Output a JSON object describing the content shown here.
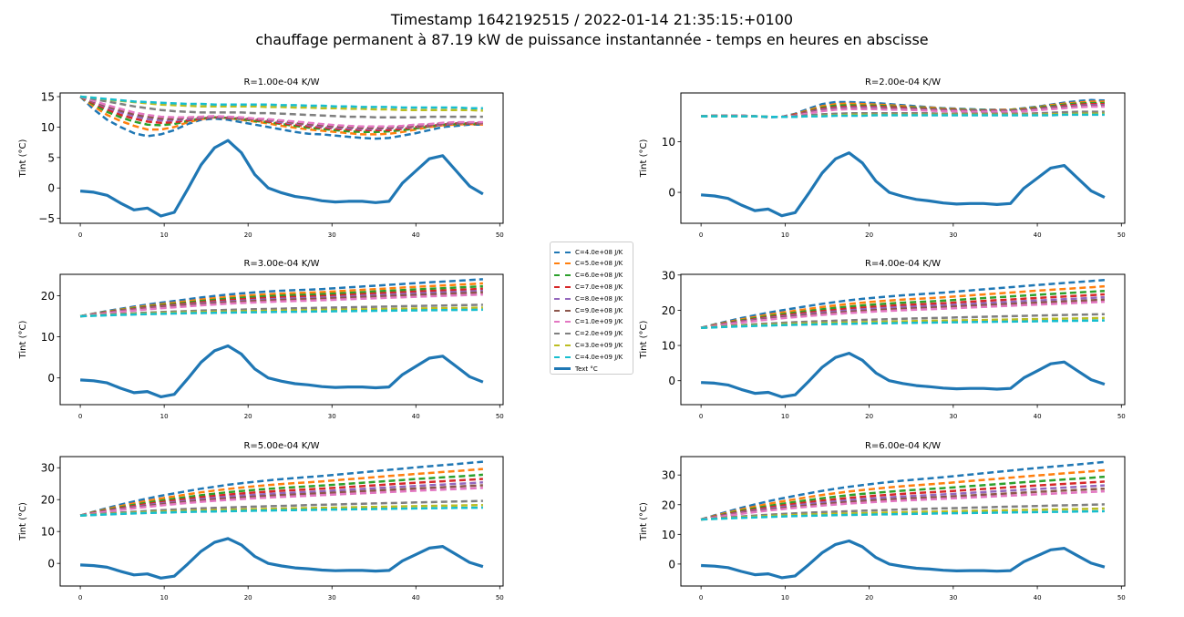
{
  "title": "Timestamp 1642192515 / 2022-01-14 21:35:15:+0100",
  "subtitle": "chauffage permanent à 87.19 kW de puissance instantannée - temps en heures en abscisse",
  "chart_data": [
    {
      "type": "line",
      "title": "R=1.00e-04 K/W",
      "ylabel": "Tint (°C)",
      "xlim": [
        -2.4,
        50.4
      ],
      "ylim": [
        -5.8,
        15.6
      ],
      "xticks": [
        0,
        10,
        20,
        30,
        40,
        50
      ],
      "yticks": [
        -5,
        0,
        5,
        10,
        15
      ],
      "cs": [
        [
          15,
          12.9,
          11.2,
          10,
          9,
          8.5,
          8.8,
          9.5,
          10.5,
          11.2,
          11.4,
          11.2,
          10.8,
          10.4,
          10,
          9.6,
          9.2,
          8.9,
          8.8,
          8.6,
          8.4,
          8.2,
          8.1,
          8.2,
          8.6,
          9,
          9.5,
          10,
          10.2,
          10.4,
          10.4
        ],
        [
          15,
          13.4,
          12,
          11,
          10.2,
          9.6,
          9.6,
          10,
          10.8,
          11.3,
          11.6,
          11.5,
          11.2,
          10.9,
          10.6,
          10.2,
          9.9,
          9.6,
          9.4,
          9.2,
          9,
          8.8,
          8.8,
          8.9,
          9.2,
          9.6,
          10,
          10.3,
          10.4,
          10.5,
          10.4
        ],
        [
          15,
          13.7,
          12.5,
          11.6,
          10.9,
          10.4,
          10.3,
          10.5,
          11,
          11.4,
          11.6,
          11.5,
          11.3,
          11,
          10.8,
          10.5,
          10.2,
          9.9,
          9.7,
          9.5,
          9.3,
          9.2,
          9.2,
          9.3,
          9.5,
          9.8,
          10.1,
          10.4,
          10.5,
          10.6,
          10.5
        ],
        [
          15,
          13.9,
          12.9,
          12,
          11.4,
          10.9,
          10.7,
          10.8,
          11.1,
          11.4,
          11.6,
          11.5,
          11.4,
          11.2,
          10.9,
          10.6,
          10.4,
          10.1,
          9.9,
          9.7,
          9.6,
          9.5,
          9.5,
          9.5,
          9.7,
          10,
          10.2,
          10.4,
          10.6,
          10.6,
          10.6
        ],
        [
          15,
          14.1,
          13.2,
          12.4,
          11.8,
          11.3,
          11.1,
          11.1,
          11.3,
          11.5,
          11.6,
          11.6,
          11.4,
          11.3,
          11.1,
          10.8,
          10.6,
          10.3,
          10.1,
          9.9,
          9.8,
          9.7,
          9.7,
          9.8,
          9.9,
          10.1,
          10.3,
          10.5,
          10.6,
          10.7,
          10.6
        ],
        [
          15,
          14.2,
          13.4,
          12.7,
          12.1,
          11.7,
          11.4,
          11.3,
          11.5,
          11.6,
          11.7,
          11.6,
          11.5,
          11.3,
          11.2,
          11,
          10.7,
          10.5,
          10.3,
          10.1,
          10,
          9.9,
          9.9,
          9.9,
          10.1,
          10.2,
          10.4,
          10.6,
          10.7,
          10.7,
          10.7
        ],
        [
          15,
          14.3,
          13.6,
          13,
          12.4,
          12,
          11.7,
          11.6,
          11.6,
          11.7,
          11.8,
          11.7,
          11.6,
          11.4,
          11.3,
          11.1,
          10.9,
          10.7,
          10.5,
          10.3,
          10.2,
          10.1,
          10.1,
          10.1,
          10.2,
          10.4,
          10.5,
          10.7,
          10.8,
          10.8,
          10.8
        ],
        [
          15,
          14.6,
          14.2,
          13.8,
          13.4,
          13.1,
          12.8,
          12.6,
          12.5,
          12.4,
          12.4,
          12.4,
          12.4,
          12.3,
          12.3,
          12.2,
          12.1,
          12,
          11.9,
          11.8,
          11.7,
          11.7,
          11.6,
          11.6,
          11.6,
          11.6,
          11.7,
          11.7,
          11.7,
          11.7,
          11.7
        ],
        [
          15,
          14.8,
          14.5,
          14.3,
          14.1,
          13.9,
          13.7,
          13.6,
          13.5,
          13.4,
          13.4,
          13.4,
          13.4,
          13.4,
          13.3,
          13.3,
          13.2,
          13.2,
          13.1,
          13.1,
          13,
          13,
          12.9,
          12.9,
          12.8,
          12.8,
          12.8,
          12.8,
          12.8,
          12.8,
          12.7
        ],
        [
          15,
          14.8,
          14.6,
          14.4,
          14.2,
          14.1,
          14,
          13.9,
          13.8,
          13.8,
          13.7,
          13.7,
          13.7,
          13.7,
          13.7,
          13.6,
          13.6,
          13.5,
          13.5,
          13.4,
          13.4,
          13.3,
          13.3,
          13.3,
          13.2,
          13.2,
          13.2,
          13.2,
          13.2,
          13.1,
          13.1
        ]
      ]
    },
    {
      "type": "line",
      "title": "R=2.00e-04 K/W",
      "ylabel": "Tint (°C)",
      "xlim": [
        -2.4,
        50.4
      ],
      "ylim": [
        -6.1,
        19.6
      ],
      "xticks": [
        0,
        10,
        20,
        30,
        40,
        50
      ],
      "yticks": [
        0,
        10
      ],
      "cs": [
        [
          15,
          15.1,
          15.1,
          15.1,
          15,
          14.8,
          14.9,
          15.5,
          16.5,
          17.4,
          17.8,
          17.8,
          17.7,
          17.6,
          17.4,
          17.2,
          17,
          16.8,
          16.6,
          16.5,
          16.4,
          16.3,
          16.3,
          16.3,
          16.6,
          16.9,
          17.3,
          17.7,
          18,
          18.2,
          18.1
        ],
        [
          15,
          15.1,
          15.1,
          15.1,
          15,
          14.9,
          14.9,
          15.4,
          16.2,
          17,
          17.4,
          17.5,
          17.4,
          17.3,
          17.2,
          17,
          16.8,
          16.7,
          16.5,
          16.4,
          16.3,
          16.2,
          16.2,
          16.3,
          16.5,
          16.8,
          17.2,
          17.5,
          17.7,
          17.9,
          17.9
        ],
        [
          15,
          15.1,
          15.1,
          15.1,
          15,
          14.9,
          14.9,
          15.3,
          16,
          16.7,
          17.1,
          17.2,
          17.1,
          17.1,
          17,
          16.8,
          16.7,
          16.5,
          16.4,
          16.3,
          16.2,
          16.2,
          16.1,
          16.2,
          16.4,
          16.7,
          17,
          17.3,
          17.5,
          17.6,
          17.6
        ],
        [
          15,
          15.1,
          15.1,
          15.1,
          15,
          14.9,
          14.9,
          15.3,
          15.9,
          16.5,
          16.8,
          16.9,
          16.9,
          16.9,
          16.8,
          16.7,
          16.5,
          16.4,
          16.3,
          16.2,
          16.1,
          16.1,
          16.1,
          16.1,
          16.3,
          16.5,
          16.8,
          17.1,
          17.3,
          17.4,
          17.4
        ],
        [
          15,
          15.1,
          15.1,
          15.1,
          15,
          14.9,
          14.9,
          15.2,
          15.8,
          16.3,
          16.6,
          16.7,
          16.7,
          16.7,
          16.6,
          16.5,
          16.4,
          16.3,
          16.2,
          16.1,
          16.1,
          16,
          16,
          16.1,
          16.2,
          16.4,
          16.7,
          16.9,
          17.1,
          17.2,
          17.2
        ],
        [
          15,
          15.1,
          15.1,
          15.1,
          15,
          14.9,
          14.9,
          15.2,
          15.7,
          16.1,
          16.4,
          16.5,
          16.5,
          16.5,
          16.5,
          16.4,
          16.3,
          16.2,
          16.1,
          16,
          16,
          15.9,
          15.9,
          16,
          16.1,
          16.3,
          16.5,
          16.8,
          16.9,
          17,
          17
        ],
        [
          15,
          15.1,
          15.1,
          15.1,
          15,
          14.9,
          14.9,
          15.1,
          15.6,
          16,
          16.3,
          16.4,
          16.4,
          16.4,
          16.3,
          16.3,
          16.2,
          16.1,
          16,
          16,
          15.9,
          15.9,
          15.9,
          15.9,
          16,
          16.2,
          16.4,
          16.6,
          16.8,
          16.9,
          16.9
        ],
        [
          15,
          15.1,
          15.1,
          15,
          15,
          14.9,
          14.9,
          15,
          15.2,
          15.4,
          15.5,
          15.6,
          15.6,
          15.6,
          15.6,
          15.6,
          15.6,
          15.6,
          15.5,
          15.5,
          15.5,
          15.5,
          15.5,
          15.5,
          15.5,
          15.6,
          15.7,
          15.8,
          15.9,
          15.9,
          15.9
        ],
        [
          15,
          15,
          15,
          15,
          15,
          14.9,
          14.9,
          14.9,
          15,
          15.1,
          15.2,
          15.3,
          15.3,
          15.3,
          15.3,
          15.3,
          15.3,
          15.3,
          15.3,
          15.3,
          15.3,
          15.3,
          15.3,
          15.3,
          15.3,
          15.3,
          15.4,
          15.4,
          15.5,
          15.5,
          15.5
        ],
        [
          15,
          15,
          15,
          15,
          15,
          14.9,
          14.9,
          14.9,
          15,
          15,
          15.1,
          15.1,
          15.1,
          15.2,
          15.2,
          15.2,
          15.2,
          15.2,
          15.2,
          15.2,
          15.2,
          15.2,
          15.2,
          15.2,
          15.2,
          15.2,
          15.2,
          15.3,
          15.3,
          15.3,
          15.3
        ]
      ]
    },
    {
      "type": "line",
      "title": "R=3.00e-04 K/W",
      "ylabel": "Tint (°C)",
      "xlim": [
        -2.4,
        50.4
      ],
      "ylim": [
        -6.5,
        25.2
      ],
      "xticks": [
        0,
        10,
        20,
        30,
        40,
        50
      ],
      "yticks": [
        0,
        10,
        20
      ],
      "end": [
        24,
        23,
        22.3,
        21.7,
        21.2,
        20.8,
        20.3,
        17.8,
        17.1,
        16.6
      ]
    },
    {
      "type": "line",
      "title": "R=4.00e-04 K/W",
      "ylabel": "Tint (°C)",
      "xlim": [
        -2.4,
        50.4
      ],
      "ylim": [
        -6.8,
        30.2
      ],
      "xticks": [
        0,
        10,
        20,
        30,
        40,
        50
      ],
      "yticks": [
        0,
        10,
        20,
        30
      ],
      "end": [
        28.6,
        26.8,
        25.5,
        24.5,
        23.7,
        23,
        22.4,
        18.9,
        17.8,
        17.1
      ]
    },
    {
      "type": "line",
      "title": "R=5.00e-04 K/W",
      "ylabel": "Tint (°C)",
      "xlim": [
        -2.4,
        50.4
      ],
      "ylim": [
        -7.1,
        33.5
      ],
      "xticks": [
        0,
        10,
        20,
        30,
        40,
        50
      ],
      "yticks": [
        0,
        10,
        20,
        30
      ],
      "end": [
        31.9,
        29.6,
        27.8,
        26.5,
        25.4,
        24.5,
        23.7,
        19.6,
        18.3,
        17.5
      ]
    },
    {
      "type": "line",
      "title": "R=6.00e-04 K/W",
      "ylabel": "Tint (°C)",
      "xlim": [
        -2.4,
        50.4
      ],
      "ylim": [
        -7.4,
        36.2
      ],
      "xticks": [
        0,
        10,
        20,
        30,
        40,
        50
      ],
      "yticks": [
        0,
        10,
        20,
        30
      ],
      "end": [
        34.4,
        31.6,
        29.4,
        27.8,
        26.5,
        25.4,
        24.5,
        20.1,
        18.7,
        17.8
      ]
    }
  ],
  "text_series": {
    "name": "Text °C",
    "x": [
      0,
      1.6,
      3.2,
      4.8,
      6.4,
      8,
      9.6,
      11.2,
      12.8,
      14.4,
      16,
      17.6,
      19.2,
      20.8,
      22.4,
      24,
      25.6,
      27.2,
      28.8,
      30.4,
      32,
      33.6,
      35.2,
      36.8,
      38.4,
      40,
      41.6,
      43.2,
      44.8,
      46.4,
      48
    ],
    "values": [
      -0.5,
      -0.7,
      -1.2,
      -2.5,
      -3.6,
      -3.3,
      -4.6,
      -4,
      -0.2,
      3.8,
      6.6,
      7.8,
      5.8,
      2.2,
      0,
      -0.8,
      -1.4,
      -1.7,
      -2.1,
      -2.3,
      -2.2,
      -2.2,
      -2.4,
      -2.2,
      0.8,
      2.8,
      4.8,
      5.3,
      2.8,
      0.3,
      -1
    ]
  },
  "x_common": [
    0,
    1.6,
    3.2,
    4.8,
    6.4,
    8,
    9.6,
    11.2,
    12.8,
    14.4,
    16,
    17.6,
    19.2,
    20.8,
    22.4,
    24,
    25.6,
    27.2,
    28.8,
    30.4,
    32,
    33.6,
    35.2,
    36.8,
    38.4,
    40,
    41.6,
    43.2,
    44.8,
    46.4,
    48
  ],
  "legend": [
    {
      "label": "C=4.0e+08 J/K",
      "color": "#1f77b4"
    },
    {
      "label": "C=5.0e+08 J/K",
      "color": "#ff7f0e"
    },
    {
      "label": "C=6.0e+08 J/K",
      "color": "#2ca02c"
    },
    {
      "label": "C=7.0e+08 J/K",
      "color": "#d62728"
    },
    {
      "label": "C=8.0e+08 J/K",
      "color": "#9467bd"
    },
    {
      "label": "C=9.0e+08 J/K",
      "color": "#8c564b"
    },
    {
      "label": "C=1.0e+09 J/K",
      "color": "#e377c2"
    },
    {
      "label": "C=2.0e+09 J/K",
      "color": "#7f7f7f"
    },
    {
      "label": "C=3.0e+09 J/K",
      "color": "#bcbd22"
    },
    {
      "label": "C=4.0e+09 J/K",
      "color": "#17becf"
    },
    {
      "label": "Text °C",
      "color": "#1f77b4",
      "solid": true
    }
  ]
}
